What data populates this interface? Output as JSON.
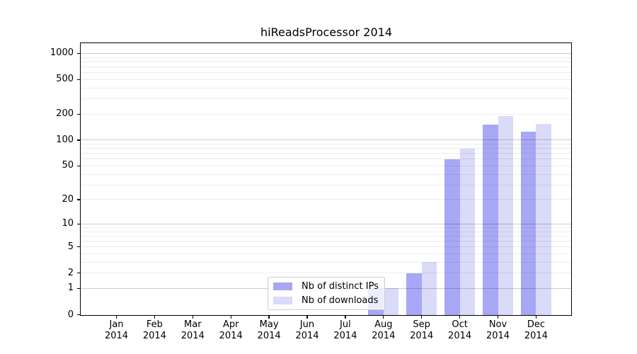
{
  "chart_data": {
    "type": "bar",
    "title": "hiReadsProcessor 2014",
    "year_label": "2014",
    "months": [
      "Jan",
      "Feb",
      "Mar",
      "Apr",
      "May",
      "Jun",
      "Jul",
      "Aug",
      "Sep",
      "Oct",
      "Nov",
      "Dec"
    ],
    "categories": [
      "Jan 2014",
      "Feb 2014",
      "Mar 2014",
      "Apr 2014",
      "May 2014",
      "Jun 2014",
      "Jul 2014",
      "Aug 2014",
      "Sep 2014",
      "Oct 2014",
      "Nov 2014",
      "Dec 2014"
    ],
    "series": [
      {
        "name": "Nb of distinct IPs",
        "color": "#a7a7f5",
        "values": [
          0,
          0,
          0,
          0,
          0,
          0,
          0,
          1,
          2,
          60,
          150,
          125
        ]
      },
      {
        "name": "Nb of downloads",
        "color": "#dadaf9",
        "values": [
          0,
          0,
          0,
          0,
          0,
          0,
          0,
          1,
          3,
          80,
          190,
          155
        ]
      }
    ],
    "y_axis": {
      "scale": "log10(1+v)",
      "tick_values": [
        0,
        1,
        2,
        5,
        10,
        20,
        50,
        100,
        200,
        500,
        1000
      ],
      "major_grid_values": [
        1,
        10,
        100,
        1000
      ],
      "minor_grid_decades": [
        1,
        10,
        100
      ],
      "range_top_value": 1300
    },
    "x_axis": {
      "label_lines": 2
    },
    "legend": {
      "position": "lower-center"
    },
    "grid": "horizontal-only",
    "colors": {
      "spine": "#000000",
      "background": "#ffffff",
      "major_grid": "rgba(0,0,0,0.20)",
      "minor_grid": "rgba(0,0,0,0.07)"
    }
  }
}
